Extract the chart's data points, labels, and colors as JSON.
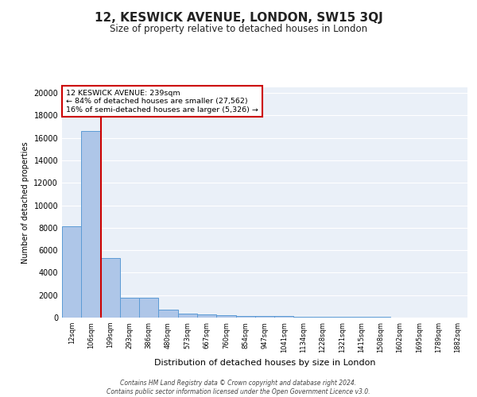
{
  "title": "12, KESWICK AVENUE, LONDON, SW15 3QJ",
  "subtitle": "Size of property relative to detached houses in London",
  "xlabel": "Distribution of detached houses by size in London",
  "ylabel": "Number of detached properties",
  "bar_values": [
    8100,
    16600,
    5300,
    1800,
    1800,
    700,
    350,
    250,
    200,
    175,
    150,
    125,
    100,
    75,
    60,
    50,
    40,
    35,
    30,
    25,
    15
  ],
  "bar_labels": [
    "12sqm",
    "106sqm",
    "199sqm",
    "293sqm",
    "386sqm",
    "480sqm",
    "573sqm",
    "667sqm",
    "760sqm",
    "854sqm",
    "947sqm",
    "1041sqm",
    "1134sqm",
    "1228sqm",
    "1321sqm",
    "1415sqm",
    "1508sqm",
    "1602sqm",
    "1695sqm",
    "1789sqm",
    "1882sqm"
  ],
  "bar_color": "#aec6e8",
  "bar_edge_color": "#5b9bd5",
  "bg_color": "#eaf0f8",
  "annotation_line1": "12 KESWICK AVENUE: 239sqm",
  "annotation_line2": "← 84% of detached houses are smaller (27,562)",
  "annotation_line3": "16% of semi-detached houses are larger (5,326) →",
  "vline_pos": 1.5,
  "ylim": [
    0,
    20500
  ],
  "yticks": [
    0,
    2000,
    4000,
    6000,
    8000,
    10000,
    12000,
    14000,
    16000,
    18000,
    20000
  ],
  "footer_line1": "Contains HM Land Registry data © Crown copyright and database right 2024.",
  "footer_line2": "Contains public sector information licensed under the Open Government Licence v3.0.",
  "annotation_box_color": "#ffffff",
  "annotation_box_edge": "#cc0000",
  "vline_color": "#cc0000"
}
